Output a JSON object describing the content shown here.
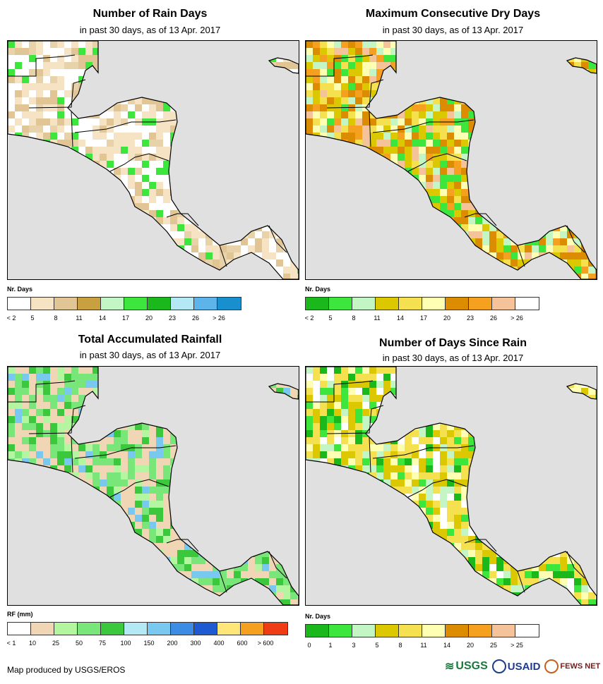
{
  "panels": [
    {
      "title": "Number of Rain Days",
      "subtitle": "in past 30 days, as of 13 Apr. 2017",
      "legend_title": "Nr. Days",
      "legend_colors": [
        "#ffffff",
        "#f5e3c4",
        "#e2c595",
        "#c9a040",
        "#c4f5c4",
        "#3ce63c",
        "#1ab81a",
        "#b4e8f5",
        "#5cb4eb",
        "#1890d0"
      ],
      "legend_labels": [
        "< 2",
        "5",
        "8",
        "11",
        "14",
        "17",
        "20",
        "23",
        "26",
        "> 26"
      ],
      "land_palette": [
        "#ffffff",
        "#ffffff",
        "#f5e3c4",
        "#e8d2aa",
        "#e2c595",
        "#f5e3c4",
        "#ffffff",
        "#e2c595",
        "#3ce63c",
        "#f5e3c4"
      ]
    },
    {
      "title": "Maximum Consecutive Dry Days",
      "subtitle": "in past 30 days, as of 13 Apr. 2017",
      "legend_title": "Nr. Days",
      "legend_colors": [
        "#1ab81a",
        "#3ce63c",
        "#c4f5c4",
        "#dcc800",
        "#f5e050",
        "#ffffb4",
        "#dc8c00",
        "#f5a01e",
        "#f5c39a",
        "#ffffff"
      ],
      "legend_labels": [
        "< 2",
        "5",
        "8",
        "11",
        "14",
        "17",
        "20",
        "23",
        "26",
        "> 26"
      ],
      "land_palette": [
        "#dcc800",
        "#dc8c00",
        "#f5e050",
        "#dcc800",
        "#f5a01e",
        "#ffffb4",
        "#dc8c00",
        "#3ce63c",
        "#c4f5c4",
        "#f5c39a"
      ]
    },
    {
      "title": "Total Accumulated Rainfall",
      "subtitle": "in past 30 days, as of 13 Apr. 2017",
      "legend_title": "RF (mm)",
      "legend_colors": [
        "#ffffff",
        "#f0d6b4",
        "#b4f5a0",
        "#78e678",
        "#3cc83c",
        "#b4e8f5",
        "#78c8f0",
        "#3c8ce6",
        "#1e5ad2",
        "#ffe678",
        "#f5a01e",
        "#f03c14"
      ],
      "legend_labels": [
        "< 1",
        "10",
        "25",
        "50",
        "75",
        "100",
        "150",
        "200",
        "300",
        "400",
        "600",
        "> 600"
      ],
      "land_palette": [
        "#f0d6b4",
        "#78e678",
        "#3cc83c",
        "#b4f5a0",
        "#f0d6b4",
        "#78e678",
        "#78c8f0",
        "#3cc83c",
        "#78e678",
        "#f0d6b4"
      ]
    },
    {
      "title": "Number of Days Since Rain",
      "subtitle": "in past 30 days, as of 13 Apr. 2017",
      "legend_title": "Nr. Days",
      "legend_colors": [
        "#1ab81a",
        "#3ce63c",
        "#c4f5c4",
        "#dcc800",
        "#f5e050",
        "#ffffb4",
        "#dc8c00",
        "#f5a01e",
        "#f5c39a",
        "#ffffff"
      ],
      "legend_labels": [
        "0",
        "1",
        "3",
        "5",
        "8",
        "11",
        "14",
        "20",
        "25",
        "> 25"
      ],
      "land_palette": [
        "#f5e050",
        "#dcc800",
        "#ffffb4",
        "#3ce63c",
        "#f5e050",
        "#c4f5c4",
        "#dcc800",
        "#1ab81a",
        "#ffffff",
        "#f5e050"
      ]
    }
  ],
  "credit": "Map produced by USGS/EROS",
  "logos": {
    "usgs": "USGS",
    "usaid": "USAID",
    "fews": "FEWS NET"
  },
  "colors": {
    "ocean": "#e0e0e0",
    "border": "#000000"
  }
}
